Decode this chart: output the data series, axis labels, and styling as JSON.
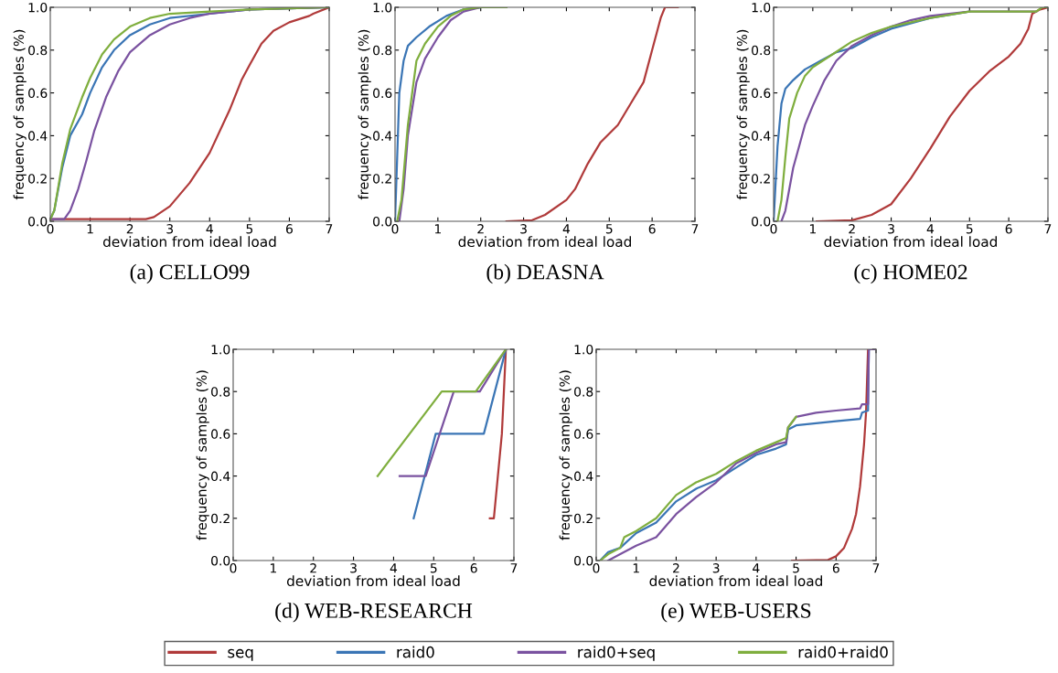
{
  "chart_data": [
    {
      "type": "line",
      "title": "(a) CELLO99",
      "xlabel": "deviation from ideal load",
      "ylabel": "frequency of samples (%)",
      "xlim": [
        0,
        7
      ],
      "ylim": [
        0,
        1
      ],
      "xticks": [
        0,
        1,
        2,
        3,
        4,
        5,
        6,
        7
      ],
      "yticks": [
        {
          "value": 0,
          "label": "0.0"
        },
        {
          "value": 0.2,
          "label": "0.2"
        },
        {
          "value": 0.4,
          "label": "0.4"
        },
        {
          "value": 0.6,
          "label": "0.6"
        },
        {
          "value": 0.8,
          "label": "0.8"
        },
        {
          "value": 1,
          "label": "1.0"
        }
      ],
      "grid": false,
      "legend": "bottom",
      "series": [
        {
          "name": "seq",
          "color": "#b03a3a",
          "x": [
            0,
            2.4,
            2.6,
            3,
            3.5,
            4,
            4.5,
            4.8,
            5,
            5.3,
            5.6,
            6,
            6.5,
            6.6,
            7
          ],
          "values": [
            0.01,
            0.01,
            0.02,
            0.07,
            0.18,
            0.32,
            0.52,
            0.66,
            0.73,
            0.83,
            0.89,
            0.93,
            0.96,
            0.97,
            1.0
          ]
        },
        {
          "name": "raid0",
          "color": "#3a75b5",
          "x": [
            0,
            0.1,
            0.3,
            0.5,
            0.8,
            1,
            1.3,
            1.6,
            2,
            2.5,
            3,
            4,
            5,
            7
          ],
          "values": [
            0.01,
            0.05,
            0.25,
            0.4,
            0.5,
            0.6,
            0.72,
            0.8,
            0.87,
            0.92,
            0.95,
            0.97,
            0.99,
            1.0
          ]
        },
        {
          "name": "raid0+seq",
          "color": "#7a52a0",
          "x": [
            0,
            0.35,
            0.5,
            0.7,
            0.9,
            1.1,
            1.4,
            1.7,
            2,
            2.5,
            3,
            3.5,
            4,
            5,
            7
          ],
          "values": [
            0.01,
            0.01,
            0.05,
            0.15,
            0.28,
            0.42,
            0.58,
            0.7,
            0.79,
            0.87,
            0.92,
            0.95,
            0.97,
            0.99,
            1.0
          ]
        },
        {
          "name": "raid0+raid0",
          "color": "#7fae3e",
          "x": [
            0,
            0.1,
            0.3,
            0.5,
            0.8,
            1,
            1.3,
            1.6,
            2,
            2.5,
            3,
            4,
            5,
            7
          ],
          "values": [
            0.01,
            0.05,
            0.27,
            0.43,
            0.58,
            0.67,
            0.78,
            0.85,
            0.91,
            0.95,
            0.97,
            0.98,
            0.99,
            1.0
          ]
        }
      ]
    },
    {
      "type": "line",
      "title": "(b) DEASNA",
      "xlabel": "deviation from ideal load",
      "ylabel": "frequency of samples (%)",
      "xlim": [
        0,
        7
      ],
      "ylim": [
        0,
        1
      ],
      "xticks": [
        0,
        1,
        2,
        3,
        4,
        5,
        6,
        7
      ],
      "yticks": [
        {
          "value": 0,
          "label": "0.0"
        },
        {
          "value": 0.2,
          "label": "0.2"
        },
        {
          "value": 0.4,
          "label": "0.4"
        },
        {
          "value": 0.6,
          "label": "0.6"
        },
        {
          "value": 0.8,
          "label": "0.8"
        },
        {
          "value": 1,
          "label": "1.0"
        }
      ],
      "grid": false,
      "series": [
        {
          "color": "#b03a3a",
          "x": [
            2.6,
            3.2,
            3.5,
            4,
            4.2,
            4.5,
            4.8,
            5.2,
            5.5,
            5.8,
            6,
            6.2,
            6.3,
            6.6
          ],
          "values": [
            0,
            0.005,
            0.03,
            0.1,
            0.15,
            0.27,
            0.37,
            0.45,
            0.55,
            0.65,
            0.8,
            0.95,
            1.0,
            1.0
          ]
        },
        {
          "color": "#3a75b5",
          "x": [
            0,
            0.05,
            0.1,
            0.2,
            0.3,
            0.5,
            0.8,
            1.2,
            1.6,
            2
          ],
          "values": [
            0,
            0.3,
            0.6,
            0.75,
            0.82,
            0.86,
            0.91,
            0.96,
            0.99,
            1.0
          ]
        },
        {
          "color": "#7a52a0",
          "x": [
            0.1,
            0.2,
            0.3,
            0.5,
            0.7,
            1,
            1.3,
            1.6,
            2,
            2.6
          ],
          "values": [
            0,
            0.15,
            0.4,
            0.65,
            0.76,
            0.86,
            0.94,
            0.98,
            1.0,
            1.0
          ]
        },
        {
          "color": "#7fae3e",
          "x": [
            0.05,
            0.15,
            0.3,
            0.5,
            0.7,
            1,
            1.3,
            1.6,
            2,
            2.6
          ],
          "values": [
            0,
            0.1,
            0.45,
            0.75,
            0.83,
            0.91,
            0.96,
            0.99,
            1.0,
            1.0
          ]
        }
      ]
    },
    {
      "type": "line",
      "title": "(c) HOME02",
      "xlabel": "deviation from ideal load",
      "ylabel": "frequency of samples (%)",
      "xlim": [
        0,
        7
      ],
      "ylim": [
        0,
        1
      ],
      "xticks": [
        0,
        1,
        2,
        3,
        4,
        5,
        6,
        7
      ],
      "yticks": [
        {
          "value": 0,
          "label": "0.0"
        },
        {
          "value": 0.2,
          "label": "0.2"
        },
        {
          "value": 0.4,
          "label": "0.4"
        },
        {
          "value": 0.6,
          "label": "0.6"
        },
        {
          "value": 0.8,
          "label": "0.8"
        },
        {
          "value": 1,
          "label": "1.0"
        }
      ],
      "grid": false,
      "series": [
        {
          "color": "#b03a3a",
          "x": [
            1.1,
            2,
            2.5,
            3,
            3.5,
            4,
            4.5,
            5,
            5.5,
            6,
            6.3,
            6.5,
            6.6,
            6.8,
            7
          ],
          "values": [
            0,
            0.005,
            0.03,
            0.08,
            0.2,
            0.34,
            0.49,
            0.61,
            0.7,
            0.77,
            0.83,
            0.9,
            0.97,
            0.99,
            1.0
          ]
        },
        {
          "color": "#3a75b5",
          "x": [
            0,
            0.1,
            0.2,
            0.3,
            0.5,
            0.8,
            1.2,
            1.6,
            2,
            2.5,
            3,
            4,
            5
          ],
          "values": [
            0,
            0.35,
            0.55,
            0.62,
            0.66,
            0.71,
            0.75,
            0.79,
            0.81,
            0.86,
            0.9,
            0.95,
            0.98
          ]
        },
        {
          "color": "#7a52a0",
          "x": [
            0.2,
            0.3,
            0.5,
            0.8,
            1,
            1.3,
            1.6,
            2,
            2.5,
            3,
            3.5,
            4,
            5,
            6.7
          ],
          "values": [
            0,
            0.05,
            0.25,
            0.45,
            0.54,
            0.66,
            0.75,
            0.82,
            0.87,
            0.91,
            0.94,
            0.96,
            0.98,
            0.98
          ]
        },
        {
          "color": "#7fae3e",
          "x": [
            0.1,
            0.2,
            0.3,
            0.4,
            0.6,
            0.8,
            1,
            1.5,
            2,
            2.5,
            3,
            4,
            5,
            6.7,
            6.85,
            7
          ],
          "values": [
            0,
            0.1,
            0.3,
            0.48,
            0.6,
            0.68,
            0.72,
            0.78,
            0.84,
            0.88,
            0.91,
            0.95,
            0.98,
            0.98,
            1.0,
            1.0
          ]
        }
      ]
    },
    {
      "type": "line",
      "title": "(d) WEB-RESEARCH",
      "xlabel": "deviation from ideal load",
      "ylabel": "frequency of samples (%)",
      "xlim": [
        0,
        7
      ],
      "ylim": [
        0,
        1
      ],
      "xticks": [
        0,
        1,
        2,
        3,
        4,
        5,
        6,
        7
      ],
      "yticks": [
        {
          "value": 0,
          "label": "0.0"
        },
        {
          "value": 0.2,
          "label": "0.2"
        },
        {
          "value": 0.4,
          "label": "0.4"
        },
        {
          "value": 0.6,
          "label": "0.6"
        },
        {
          "value": 0.8,
          "label": "0.8"
        },
        {
          "value": 1,
          "label": "1.0"
        }
      ],
      "grid": false,
      "series": [
        {
          "color": "#b03a3a",
          "x": [
            6.4,
            6.5,
            6.7,
            6.8
          ],
          "values": [
            0.2,
            0.2,
            0.6,
            1.0
          ]
        },
        {
          "color": "#3a75b5",
          "x": [
            4.5,
            5.05,
            6.25,
            6.8
          ],
          "values": [
            0.2,
            0.6,
            0.6,
            1.0
          ]
        },
        {
          "color": "#7a52a0",
          "x": [
            4.15,
            4.8,
            5.5,
            6.15,
            6.8
          ],
          "values": [
            0.4,
            0.4,
            0.8,
            0.8,
            1.0
          ]
        },
        {
          "color": "#7fae3e",
          "x": [
            3.6,
            5.2,
            6.05,
            6.8
          ],
          "values": [
            0.4,
            0.8,
            0.8,
            1.0
          ]
        }
      ]
    },
    {
      "type": "line",
      "title": "(e) WEB-USERS",
      "xlabel": "deviation from ideal load",
      "ylabel": "frequency of samples (%)",
      "xlim": [
        0,
        7
      ],
      "ylim": [
        0,
        1
      ],
      "xticks": [
        0,
        1,
        2,
        3,
        4,
        5,
        6,
        7
      ],
      "yticks": [
        {
          "value": 0,
          "label": "0.0"
        },
        {
          "value": 0.2,
          "label": "0.2"
        },
        {
          "value": 0.4,
          "label": "0.4"
        },
        {
          "value": 0.6,
          "label": "0.6"
        },
        {
          "value": 0.8,
          "label": "0.8"
        },
        {
          "value": 1,
          "label": "1.0"
        }
      ],
      "grid": false,
      "series": [
        {
          "color": "#b03a3a",
          "x": [
            4.9,
            5.8,
            6,
            6.2,
            6.4,
            6.5,
            6.6,
            6.7,
            6.75,
            6.8,
            7
          ],
          "values": [
            0,
            0.003,
            0.02,
            0.06,
            0.15,
            0.22,
            0.35,
            0.55,
            0.7,
            1.0,
            1.0
          ]
        },
        {
          "color": "#3a75b5",
          "x": [
            0.1,
            0.3,
            0.6,
            1,
            1.5,
            2,
            2.5,
            3,
            3.5,
            4,
            4.5,
            4.75,
            4.8,
            5,
            5.5,
            6,
            6.6,
            6.65,
            6.8,
            6.82,
            7
          ],
          "values": [
            0,
            0.04,
            0.06,
            0.13,
            0.18,
            0.28,
            0.34,
            0.38,
            0.44,
            0.5,
            0.53,
            0.55,
            0.62,
            0.64,
            0.65,
            0.66,
            0.67,
            0.7,
            0.71,
            1.0,
            1.0
          ]
        },
        {
          "color": "#7a52a0",
          "x": [
            0.3,
            0.6,
            1,
            1.5,
            2,
            2.5,
            3,
            3.5,
            4,
            4.5,
            4.75,
            4.8,
            5,
            5.5,
            6,
            6.6,
            6.65,
            6.8,
            6.82,
            7
          ],
          "values": [
            0,
            0.03,
            0.07,
            0.11,
            0.22,
            0.3,
            0.37,
            0.46,
            0.51,
            0.55,
            0.56,
            0.63,
            0.68,
            0.7,
            0.71,
            0.72,
            0.74,
            0.74,
            1.0,
            1.0
          ]
        },
        {
          "color": "#7fae3e",
          "x": [
            0.1,
            0.3,
            0.6,
            0.7,
            1,
            1.5,
            2,
            2.5,
            3,
            3.5,
            4,
            4.5,
            4.75,
            4.8,
            5
          ],
          "values": [
            0,
            0.03,
            0.06,
            0.11,
            0.14,
            0.2,
            0.31,
            0.37,
            0.41,
            0.47,
            0.52,
            0.56,
            0.58,
            0.63,
            0.68
          ]
        }
      ]
    }
  ]
}
